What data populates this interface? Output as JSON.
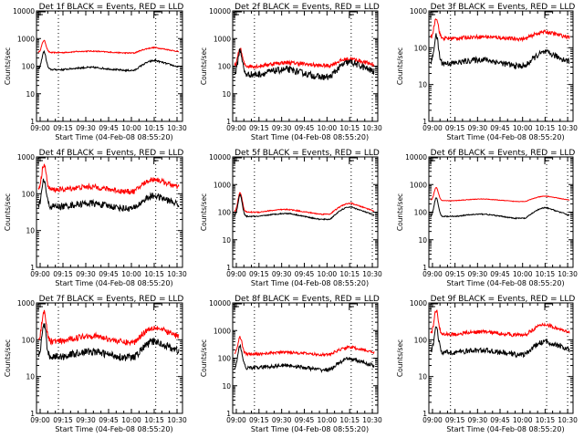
{
  "chart_data": {
    "type": "line",
    "figure_layout": "3x3 grid",
    "x_axis": {
      "label": "Start Time (04-Feb-08 08:55:20)",
      "range_minutes_after_0900": [
        -2.4,
        93.6
      ],
      "tick_labels": [
        "09:00",
        "09:15",
        "09:30",
        "09:45",
        "10:00",
        "10:15",
        "10:30"
      ],
      "tick_minutes_after_0900": [
        0,
        15,
        30,
        45,
        60,
        75,
        90
      ],
      "dotted_markers_minutes_after_0900": [
        12,
        76,
        90
      ],
      "interval_markers_minutes_after_0900": [
        0,
        76
      ]
    },
    "y_axis": {
      "label": "Counts/sec",
      "scale": "log"
    },
    "series_legend": {
      "black": "Events",
      "red": "LLD"
    },
    "colors": {
      "events": "#000000",
      "lld": "#ff0000"
    },
    "panels": [
      {
        "title": "Det 1f BLACK = Events, RED = LLD",
        "ylim": [
          1,
          10000
        ],
        "y_tick_labels": [
          "1",
          "10",
          "100",
          "1000",
          "10000"
        ],
        "events": {
          "base": 75,
          "peak": 330,
          "mid": 90,
          "valley": 70,
          "hump": 160,
          "end": 85,
          "noise": 0.03
        },
        "lld": {
          "base": 310,
          "peak": 850,
          "mid": 350,
          "valley": 300,
          "hump": 470,
          "end": 320,
          "noise": 0.02
        }
      },
      {
        "title": "Det 2f BLACK = Events, RED = LLD",
        "ylim": [
          1,
          10000
        ],
        "y_tick_labels": [
          "1",
          "10",
          "100",
          "1000",
          "10000"
        ],
        "events": {
          "base": 50,
          "peak": 380,
          "mid": 75,
          "valley": 40,
          "hump": 140,
          "end": 55,
          "noise": 0.12
        },
        "lld": {
          "base": 100,
          "peak": 430,
          "mid": 135,
          "valley": 105,
          "hump": 185,
          "end": 105,
          "noise": 0.07
        }
      },
      {
        "title": "Det 3f BLACK = Events, RED = LLD",
        "ylim": [
          1,
          1000
        ],
        "y_tick_labels": [
          "1",
          "10",
          "100",
          "1000"
        ],
        "events": {
          "base": 38,
          "peak": 210,
          "mid": 48,
          "valley": 32,
          "hump": 75,
          "end": 38,
          "noise": 0.08
        },
        "lld": {
          "base": 180,
          "peak": 650,
          "mid": 200,
          "valley": 175,
          "hump": 270,
          "end": 180,
          "noise": 0.05
        }
      },
      {
        "title": "Det 4f BLACK = Events, RED = LLD",
        "ylim": [
          1,
          1000
        ],
        "y_tick_labels": [
          "1",
          "10",
          "100",
          "1000"
        ],
        "events": {
          "base": 45,
          "peak": 230,
          "mid": 55,
          "valley": 40,
          "hump": 88,
          "end": 47,
          "noise": 0.09
        },
        "lld": {
          "base": 130,
          "peak": 650,
          "mid": 155,
          "valley": 115,
          "hump": 250,
          "end": 135,
          "noise": 0.07
        }
      },
      {
        "title": "Det 5f BLACK = Events, RED = LLD",
        "ylim": [
          1,
          10000
        ],
        "y_tick_labels": [
          "1",
          "10",
          "100",
          "1000",
          "10000"
        ],
        "events": {
          "base": 70,
          "peak": 420,
          "mid": 90,
          "valley": 55,
          "hump": 155,
          "end": 70,
          "noise": 0.02
        },
        "lld": {
          "base": 100,
          "peak": 520,
          "mid": 125,
          "valley": 85,
          "hump": 210,
          "end": 100,
          "noise": 0.02
        }
      },
      {
        "title": "Det 6f BLACK = Events, RED = LLD",
        "ylim": [
          1,
          10000
        ],
        "y_tick_labels": [
          "1",
          "10",
          "100",
          "1000",
          "10000"
        ],
        "events": {
          "base": 70,
          "peak": 330,
          "mid": 85,
          "valley": 60,
          "hump": 145,
          "end": 70,
          "noise": 0.02
        },
        "lld": {
          "base": 260,
          "peak": 780,
          "mid": 300,
          "valley": 245,
          "hump": 380,
          "end": 260,
          "noise": 0.01
        }
      },
      {
        "title": "Det 7f BLACK = Events, RED = LLD",
        "ylim": [
          1,
          1000
        ],
        "y_tick_labels": [
          "1",
          "10",
          "100",
          "1000"
        ],
        "events": {
          "base": 35,
          "peak": 250,
          "mid": 48,
          "valley": 33,
          "hump": 90,
          "end": 45,
          "noise": 0.1
        },
        "lld": {
          "base": 90,
          "peak": 620,
          "mid": 130,
          "valley": 85,
          "hump": 220,
          "end": 110,
          "noise": 0.08
        }
      },
      {
        "title": "Det 8f BLACK = Events, RED = LLD",
        "ylim": [
          1,
          10000
        ],
        "y_tick_labels": [
          "1",
          "10",
          "100",
          "1000",
          "10000"
        ],
        "events": {
          "base": 45,
          "peak": 270,
          "mid": 55,
          "valley": 38,
          "hump": 95,
          "end": 48,
          "noise": 0.07
        },
        "lld": {
          "base": 140,
          "peak": 580,
          "mid": 165,
          "valley": 135,
          "hump": 250,
          "end": 150,
          "noise": 0.05
        }
      },
      {
        "title": "Det 9f BLACK = Events, RED = LLD",
        "ylim": [
          1,
          1000
        ],
        "y_tick_labels": [
          "1",
          "10",
          "100",
          "1000"
        ],
        "events": {
          "base": 45,
          "peak": 220,
          "mid": 52,
          "valley": 40,
          "hump": 90,
          "end": 48,
          "noise": 0.07
        },
        "lld": {
          "base": 140,
          "peak": 620,
          "mid": 165,
          "valley": 135,
          "hump": 260,
          "end": 140,
          "noise": 0.05
        }
      }
    ]
  }
}
